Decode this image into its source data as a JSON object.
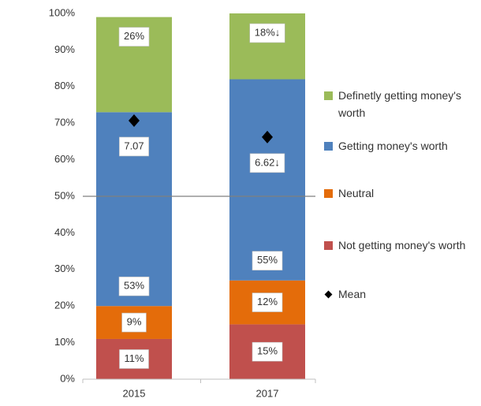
{
  "chart_data": {
    "type": "bar",
    "stacked": true,
    "categories": [
      "2015",
      "2017"
    ],
    "series": [
      {
        "name": "Not getting money's worth",
        "color": "#c0504d",
        "values": [
          11,
          15
        ],
        "value_labels": [
          "11%",
          "15%"
        ],
        "label_colors": [
          "#000000",
          "#000000"
        ]
      },
      {
        "name": "Neutral",
        "color": "#e46c0a",
        "values": [
          9,
          12
        ],
        "value_labels": [
          "9%",
          "12%"
        ],
        "label_colors": [
          "#000000",
          "#000000"
        ]
      },
      {
        "name": "Getting money's worth",
        "color": "#4f81bd",
        "values": [
          53,
          55
        ],
        "value_labels": [
          "53%",
          "55%"
        ],
        "label_colors": [
          "#000000",
          "#000000"
        ]
      },
      {
        "name": "Definetly getting money's worth",
        "color": "#9bbb59",
        "values": [
          26,
          18
        ],
        "value_labels": [
          "26%",
          "18%↓"
        ],
        "label_colors": [
          "#000000",
          "#ff0000"
        ]
      },
      {
        "name": "Mean",
        "type": "scatter",
        "axis": "y2",
        "color": "#000000",
        "values": [
          7.07,
          6.62
        ],
        "value_labels": [
          "7.07",
          "6.62↓"
        ],
        "label_colors": [
          "#000000",
          "#ff0000"
        ]
      }
    ],
    "ylim": [
      0,
      100
    ],
    "yticks": [
      {
        "value": 0,
        "label": "0%"
      },
      {
        "value": 10,
        "label": "10%"
      },
      {
        "value": 20,
        "label": "20%"
      },
      {
        "value": 30,
        "label": "30%"
      },
      {
        "value": 40,
        "label": "40%"
      },
      {
        "value": 50,
        "label": "50%"
      },
      {
        "value": 60,
        "label": "60%"
      },
      {
        "value": 70,
        "label": "70%"
      },
      {
        "value": 80,
        "label": "80%"
      },
      {
        "value": 90,
        "label": "90%"
      },
      {
        "value": 100,
        "label": "100%"
      }
    ],
    "y2lim": [
      0,
      10
    ],
    "reference_line": 50,
    "legend": "right"
  }
}
